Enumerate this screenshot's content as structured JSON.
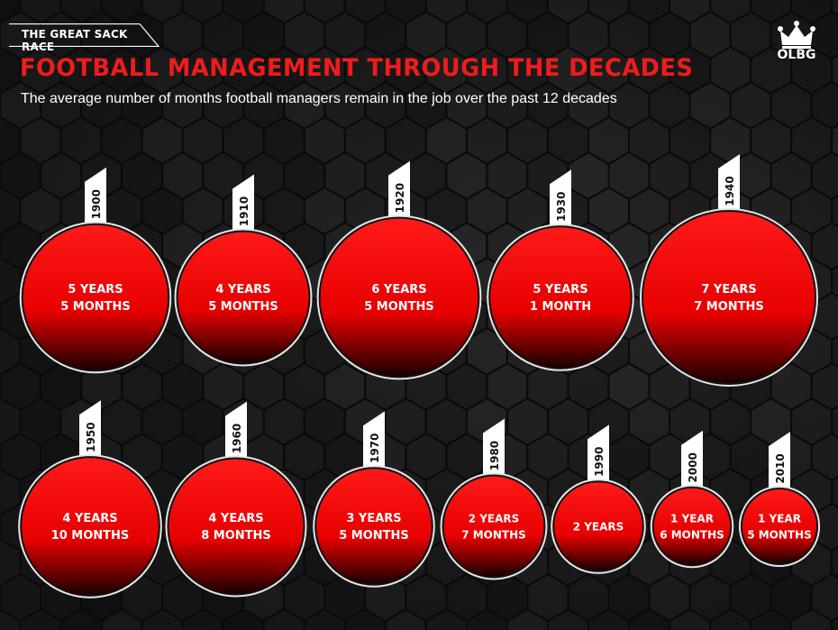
{
  "header": {
    "tag": "THE GREAT SACK RACE",
    "title": "FOOTBALL MANAGEMENT THROUGH THE DECADES",
    "subtitle": "The average number of months football managers remain in the job over the past 12 decades"
  },
  "logo": {
    "text": "OLBG",
    "icon": "crown-icon"
  },
  "colors": {
    "accent": "#ee1c1c",
    "bubble_top": "#ff1a1a",
    "bubble_bottom": "#1a0000",
    "ring": "#e6e6e6",
    "background": "#141414"
  },
  "chart_data": {
    "type": "bubble",
    "decades": [
      "1900",
      "1910",
      "1920",
      "1930",
      "1940",
      "1950",
      "1960",
      "1970",
      "1980",
      "1990",
      "2000",
      "2010"
    ],
    "values_months": [
      65,
      53,
      77,
      61,
      91,
      58,
      56,
      41,
      31,
      24,
      18,
      17
    ],
    "labels": [
      [
        "5 YEARS",
        "5 MONTHS"
      ],
      [
        "4 YEARS",
        "5 MONTHS"
      ],
      [
        "6 YEARS",
        "5 MONTHS"
      ],
      [
        "5 YEARS",
        "1 MONTH"
      ],
      [
        "7 YEARS",
        "7 MONTHS"
      ],
      [
        "4 YEARS",
        "10 MONTHS"
      ],
      [
        "4 YEARS",
        "8 MONTHS"
      ],
      [
        "3 YEARS",
        "5 MONTHS"
      ],
      [
        "2 YEARS",
        "7 MONTHS"
      ],
      [
        "2 YEARS"
      ],
      [
        "1 YEAR",
        "6 MONTHS"
      ],
      [
        "1 YEAR",
        "5 MONTHS"
      ]
    ]
  }
}
